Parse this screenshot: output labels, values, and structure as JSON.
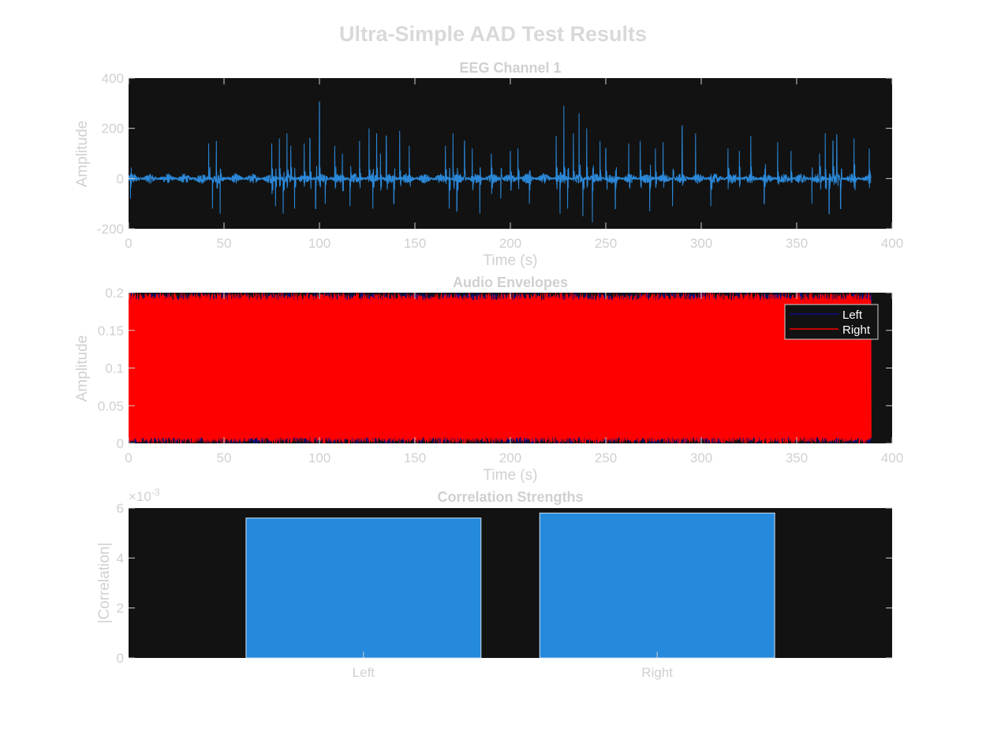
{
  "figure": {
    "title": "Ultra-Simple AAD Test Results"
  },
  "colors": {
    "axes_bg": "#121212",
    "tick_mark": "#d0d0d0",
    "eeg_line": "#2b88d8",
    "left_env": "#0a0f8a",
    "right_env": "#ff0000",
    "bar_fill": "#2589dc",
    "bar_edge": "#cfe3f5"
  },
  "chart_data": [
    {
      "type": "line",
      "title": "EEG Channel 1",
      "xlabel": "Time (s)",
      "ylabel": "Amplitude",
      "xlim": [
        0,
        400
      ],
      "ylim": [
        -200,
        400
      ],
      "xticks": [
        "0",
        "50",
        "100",
        "150",
        "200",
        "250",
        "300",
        "350",
        "400"
      ],
      "yticks": [
        "-200",
        "0",
        "200",
        "400"
      ],
      "grid": false,
      "series": [
        {
          "x_range": [
            0,
            389
          ],
          "baseline": 0,
          "noise_amplitude": 20,
          "spike_times": [
            1,
            42,
            44,
            46,
            48,
            75,
            77,
            79,
            81,
            83,
            85,
            87,
            92,
            95,
            98,
            100,
            103,
            108,
            112,
            116,
            121,
            126,
            128,
            130,
            132,
            135,
            139,
            142,
            147,
            166,
            168,
            170,
            172,
            176,
            180,
            184,
            190,
            195,
            200,
            204,
            210,
            224,
            226,
            228,
            230,
            233,
            236,
            238,
            240,
            243,
            247,
            250,
            255,
            262,
            268,
            273,
            276,
            280,
            285,
            290,
            297,
            305,
            314,
            320,
            326,
            333,
            340,
            347,
            358,
            362,
            365,
            367,
            369,
            371,
            373,
            380,
            388
          ],
          "spike_peaks": [
            -80,
            140,
            -120,
            150,
            -140,
            140,
            -110,
            160,
            -140,
            180,
            130,
            -120,
            140,
            160,
            -120,
            305,
            -100,
            130,
            100,
            -110,
            150,
            200,
            -120,
            180,
            100,
            170,
            -100,
            190,
            130,
            130,
            -120,
            180,
            -130,
            150,
            120,
            -140,
            100,
            -80,
            110,
            120,
            -100,
            170,
            -140,
            290,
            -120,
            180,
            260,
            -150,
            200,
            -175,
            150,
            120,
            -120,
            140,
            150,
            -130,
            120,
            145,
            -110,
            210,
            180,
            -110,
            120,
            110,
            170,
            -100,
            145,
            110,
            -100,
            100,
            180,
            -140,
            150,
            175,
            -120,
            160,
            120
          ]
        }
      ]
    },
    {
      "type": "line",
      "title": "Audio Envelopes",
      "xlabel": "Time (s)",
      "ylabel": "Amplitude",
      "xlim": [
        0,
        400
      ],
      "ylim": [
        0,
        0.2
      ],
      "xticks": [
        "0",
        "50",
        "100",
        "150",
        "200",
        "250",
        "300",
        "350",
        "400"
      ],
      "yticks": [
        "0",
        "0.05",
        "0.1",
        "0.15",
        "0.2"
      ],
      "grid": false,
      "legend": "top-right",
      "series": [
        {
          "name": "Left",
          "x_range": [
            0,
            389
          ],
          "y_range": [
            0,
            0.2
          ],
          "oscillation": "dense"
        },
        {
          "name": "Right",
          "x_range": [
            0,
            389
          ],
          "y_range": [
            0,
            0.2
          ],
          "oscillation": "dense"
        }
      ]
    },
    {
      "type": "bar",
      "title": "Correlation Strengths",
      "xlabel": "",
      "ylabel": "|Correlation|",
      "exponent_label": "×10",
      "exponent_power": "-3",
      "categories": [
        "Left",
        "Right"
      ],
      "values": [
        5.6,
        5.8
      ],
      "value_scale": "×10^-3",
      "ylim": [
        0,
        6
      ],
      "yticks": [
        "0",
        "2",
        "4",
        "6"
      ],
      "grid": false
    }
  ]
}
